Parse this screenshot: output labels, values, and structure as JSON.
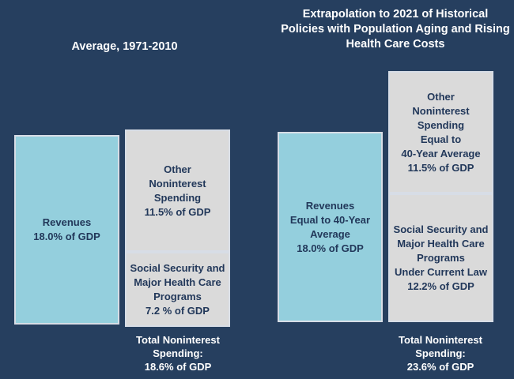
{
  "left": {
    "title": "Average, 1971-2010",
    "revenues": "Revenues\n18.0% of GDP",
    "other": "Other\nNoninterest\nSpending\n11.5% of GDP",
    "social": "Social Security and\nMajor Health Care\nPrograms\n7.2 % of GDP",
    "total": "Total Noninterest\nSpending:\n18.6% of GDP"
  },
  "right": {
    "title": "Extrapolation to 2021 of Historical\nPolicies with Population Aging and\nRising Health Care Costs",
    "revenues": "Revenues\nEqual to 40-Year\nAverage\n18.0% of GDP",
    "other": "Other\nNoninterest\nSpending\nEqual to\n40-Year Average\n11.5% of GDP",
    "social": "Social Security and\nMajor Health  Care\nPrograms\nUnder Current Law\n12.2% of GDP",
    "total": "Total Noninterest\nSpending:\n23.6% of GDP"
  },
  "colors": {
    "background": "#263f5f",
    "revenues": "#94cfdd",
    "spending": "#dadada",
    "text": "#22385a"
  }
}
